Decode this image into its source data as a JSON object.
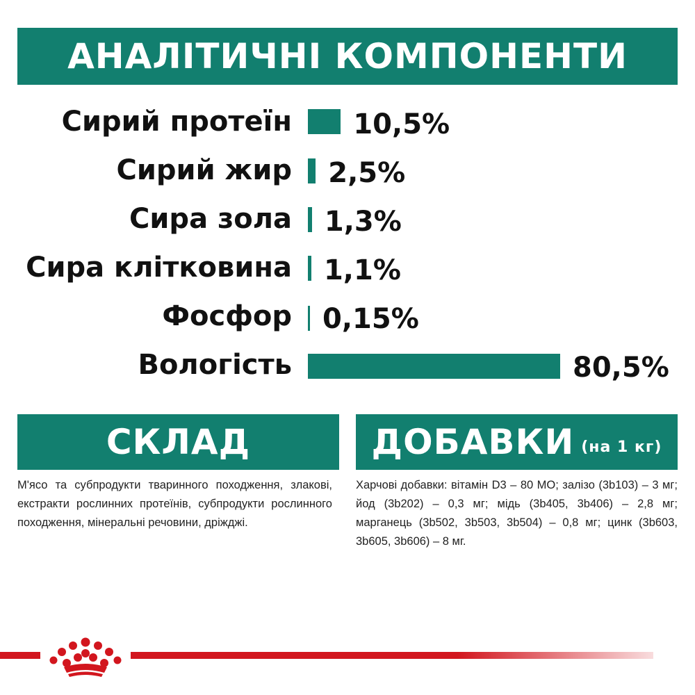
{
  "title": "АНАЛІТИЧНІ КОМПОНЕНТИ",
  "components": [
    {
      "label": "Сирий протеїн",
      "value_text": "10,5%",
      "percent": 10.5
    },
    {
      "label": "Сирий жир",
      "value_text": "2,5%",
      "percent": 2.5
    },
    {
      "label": "Сира зола",
      "value_text": "1,3%",
      "percent": 1.3
    },
    {
      "label": "Сира клітковина",
      "value_text": "1,1%",
      "percent": 1.1
    },
    {
      "label": "Фосфор",
      "value_text": "0,15%",
      "percent": 0.15
    },
    {
      "label": "Вологість",
      "value_text": "80,5%",
      "percent": 80.5
    }
  ],
  "composition": {
    "heading": "СКЛАД",
    "text": "М'ясо та субпродукти тваринного походження, злакові, екстракти рослинних протеїнів, субпродукти рослинного походження, мінеральні речовини, дріжджі."
  },
  "additives": {
    "heading": "ДОБАВКИ",
    "heading_note": "(на 1 кг)",
    "text": "Харчові добавки: вітамін D3 – 80 МО; залізо (3b103) – 3 мг; йод (3b202) – 0,3 мг; мідь (3b405, 3b406) – 2,8 мг; марганець (3b502, 3b503, 3b504) – 0,8 мг; цинк (3b603, 3b605, 3b606) – 8 мг."
  },
  "colors": {
    "accent": "#127f6f",
    "brand_red": "#d2161e"
  },
  "icons": {
    "logo": "royal-crown-icon"
  }
}
